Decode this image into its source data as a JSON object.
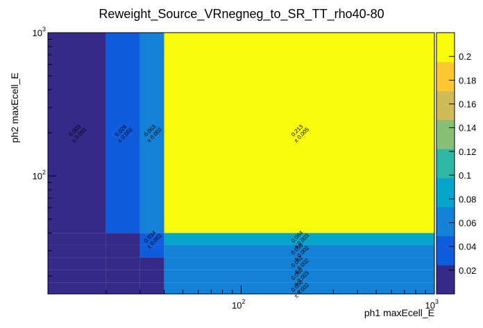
{
  "chart_data": {
    "type": "heatmap",
    "title": "Reweight_Source_VRnegneg_to_SR_TT_rho40-80",
    "xlabel": "ph1 maxEcell_E",
    "ylabel": "ph2 maxEcell_E",
    "xscale": "log",
    "yscale": "log",
    "xlim": [
      10,
      1000
    ],
    "ylim": [
      15,
      1000
    ],
    "x_tick_labels": [
      {
        "value": 100,
        "base": "10",
        "exp": "2"
      },
      {
        "value": 1000,
        "base": "10",
        "exp": "3"
      }
    ],
    "y_tick_labels": [
      {
        "value": 100,
        "base": "10",
        "exp": "2"
      },
      {
        "value": 1000,
        "base": "10",
        "exp": "3"
      }
    ],
    "x_bin_edges": [
      10,
      20,
      30,
      40,
      1000
    ],
    "y_bin_edges": [
      15,
      18,
      22,
      27,
      33,
      40,
      1000
    ],
    "cell_values": [
      [
        0.003,
        0.006,
        0.01,
        0.05
      ],
      [
        0.004,
        0.005,
        0.012,
        0.06
      ],
      [
        0.004,
        0.012,
        0.02,
        0.062
      ],
      [
        0.005,
        0.015,
        0.025,
        0.058
      ],
      [
        0.005,
        0.02,
        0.034,
        0.084
      ],
      [
        0.003,
        0.026,
        0.063,
        0.213
      ]
    ],
    "labels": [
      {
        "v": "0.213",
        "e": "± 0.005",
        "col": 3,
        "row": 5
      },
      {
        "v": "0.084",
        "e": "± 0.003",
        "col": 3,
        "row": 4
      },
      {
        "v": "0.058",
        "e": "± 0.002",
        "col": 3,
        "row": 3
      },
      {
        "v": "0.062",
        "e": "± 0.002",
        "col": 3,
        "row": 2
      },
      {
        "v": "0.060",
        "e": "± 0.003",
        "col": 3,
        "row": 1
      },
      {
        "v": "0.050",
        "e": "± 0.002",
        "col": 3,
        "row": 0
      },
      {
        "v": "0.063",
        "e": "± 0.002",
        "col": 2,
        "row": 5
      },
      {
        "v": "0.034",
        "e": "± 0.002",
        "col": 2,
        "row": 4
      },
      {
        "v": "0.026",
        "e": "± 0.002",
        "col": 1,
        "row": 5
      },
      {
        "v": "0.003",
        "e": "± 0.001",
        "col": 0,
        "row": 5
      }
    ],
    "colorbar": {
      "min": 0,
      "max": 0.22,
      "ticks": [
        "0.02",
        "0.04",
        "0.06",
        "0.08",
        "0.1",
        "0.12",
        "0.14",
        "0.16",
        "0.18",
        "0.2"
      ],
      "tick_values": [
        0.02,
        0.04,
        0.06,
        0.08,
        0.1,
        0.12,
        0.14,
        0.16,
        0.18,
        0.2
      ],
      "colors": [
        "#352a87",
        "#0f5cdd",
        "#1481d6",
        "#06a4ca",
        "#2eb7a4",
        "#87bf77",
        "#d1bb59",
        "#fec832",
        "#f9fb0e"
      ]
    },
    "grid": false,
    "legend": "none"
  }
}
